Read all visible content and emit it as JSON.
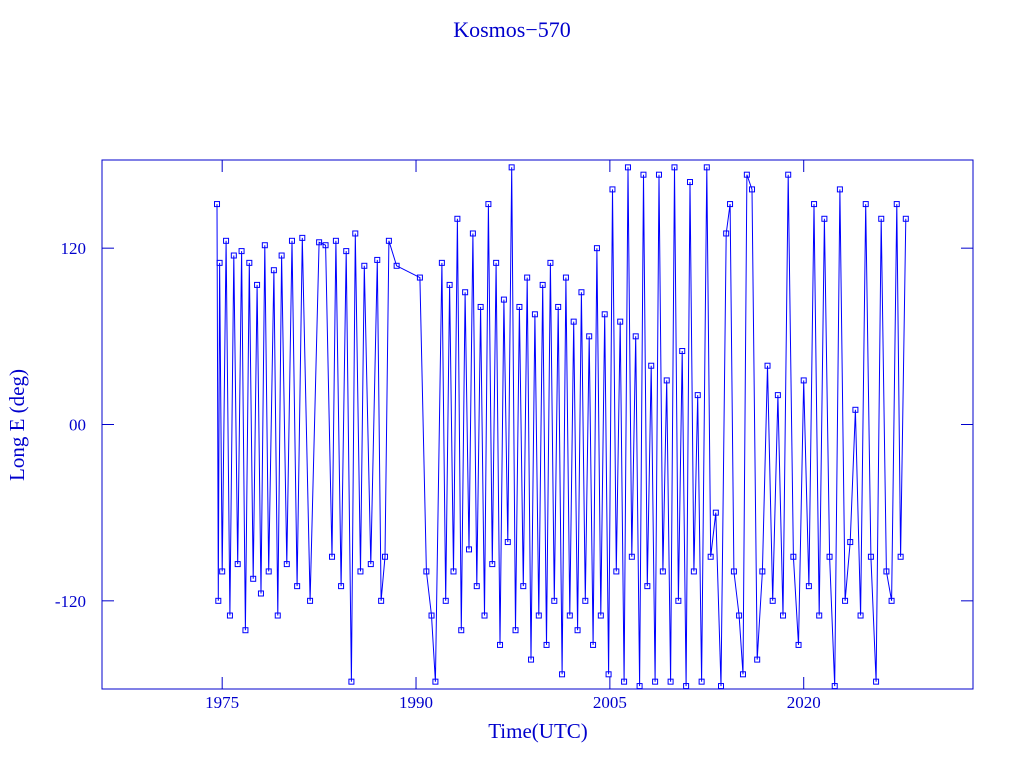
{
  "chart_data": {
    "type": "line",
    "title": "Kosmos−570",
    "xlabel": "Time(UTC)",
    "ylabel": "Long E (deg)",
    "xlim": [
      1965.7,
      2033.1
    ],
    "xticks": [
      1975,
      1990,
      2005,
      2020
    ],
    "ylim": [
      -180,
      180
    ],
    "yticks": [
      -120,
      {
        "value": 0,
        "label": "00"
      },
      120
    ],
    "series": [
      {
        "color": "#0000ff",
        "x": [
          1974.6,
          1974.7,
          1974.8,
          1975.0,
          1975.3,
          1975.6,
          1975.9,
          1976.2,
          1976.5,
          1976.8,
          1977.1,
          1977.4,
          1977.7,
          1978.0,
          1978.3,
          1978.6,
          1979.0,
          1979.3,
          1979.6,
          1980.0,
          1980.4,
          1980.8,
          1981.2,
          1981.8,
          1982.5,
          1983.0,
          1983.5,
          1983.8,
          1984.2,
          1984.6,
          1985.0,
          1985.3,
          1985.7,
          1986.0,
          1986.5,
          1987.0,
          1987.3,
          1987.6,
          1987.9,
          1988.5,
          1990.3,
          1990.8,
          1991.2,
          1991.5,
          1992.0,
          1992.3,
          1992.6,
          1992.9,
          1993.2,
          1993.5,
          1993.8,
          1994.1,
          1994.4,
          1994.7,
          1995.0,
          1995.3,
          1995.6,
          1995.9,
          1996.2,
          1996.5,
          1996.8,
          1997.1,
          1997.4,
          1997.7,
          1998.0,
          1998.3,
          1998.6,
          1998.9,
          1999.2,
          1999.5,
          1999.8,
          2000.1,
          2000.4,
          2000.7,
          2001.0,
          2001.3,
          2001.6,
          2001.9,
          2002.2,
          2002.5,
          2002.8,
          2003.1,
          2003.4,
          2003.7,
          2004.0,
          2004.3,
          2004.6,
          2004.9,
          2005.2,
          2005.5,
          2005.8,
          2006.1,
          2006.4,
          2006.7,
          2007.0,
          2007.3,
          2007.6,
          2007.9,
          2008.2,
          2008.5,
          2008.8,
          2009.1,
          2009.4,
          2009.7,
          2010.0,
          2010.3,
          2010.6,
          2010.9,
          2011.2,
          2011.5,
          2011.8,
          2012.1,
          2012.5,
          2012.8,
          2013.2,
          2013.6,
          2014.0,
          2014.3,
          2014.6,
          2015.0,
          2015.3,
          2015.6,
          2016.0,
          2016.4,
          2016.8,
          2017.2,
          2017.6,
          2018.0,
          2018.4,
          2018.8,
          2019.2,
          2019.6,
          2020.0,
          2020.4,
          2020.8,
          2021.2,
          2021.6,
          2022.0,
          2022.4,
          2022.8,
          2023.2,
          2023.6,
          2024.0,
          2024.4,
          2024.8,
          2025.2,
          2025.6,
          2026.0,
          2026.4,
          2026.8,
          2027.2,
          2027.5,
          2027.9
        ],
        "values": [
          150,
          -120,
          110,
          -100,
          125,
          -130,
          115,
          -95,
          118,
          -140,
          110,
          -105,
          95,
          -115,
          122,
          -100,
          105,
          -130,
          115,
          -95,
          125,
          -110,
          127,
          -120,
          124,
          122,
          -90,
          125,
          -110,
          118,
          -175,
          130,
          -100,
          108,
          -95,
          112,
          -120,
          -90,
          125,
          108,
          100,
          -100,
          -130,
          -175,
          110,
          -120,
          95,
          -100,
          140,
          -140,
          90,
          -85,
          130,
          -110,
          80,
          -130,
          150,
          -95,
          110,
          -150,
          85,
          -80,
          175,
          -140,
          80,
          -110,
          100,
          -160,
          75,
          -130,
          95,
          -150,
          110,
          -120,
          80,
          -170,
          100,
          -130,
          70,
          -140,
          90,
          -120,
          60,
          -150,
          120,
          -130,
          75,
          -170,
          160,
          -100,
          70,
          -175,
          175,
          -90,
          60,
          -178,
          170,
          -110,
          40,
          -175,
          170,
          -100,
          30,
          -175,
          175,
          -120,
          50,
          -178,
          165,
          -100,
          20,
          -175,
          175,
          -90,
          -60,
          -178,
          130,
          150,
          -100,
          -130,
          -170,
          170,
          160,
          -160,
          -100,
          40,
          -120,
          20,
          -130,
          170,
          -90,
          -150,
          30,
          -110,
          150,
          -130,
          140,
          -90,
          -178,
          160,
          -120,
          -80,
          10,
          -130,
          150,
          -90,
          -175,
          140,
          -100,
          -120,
          150,
          -90,
          140
        ]
      }
    ]
  }
}
